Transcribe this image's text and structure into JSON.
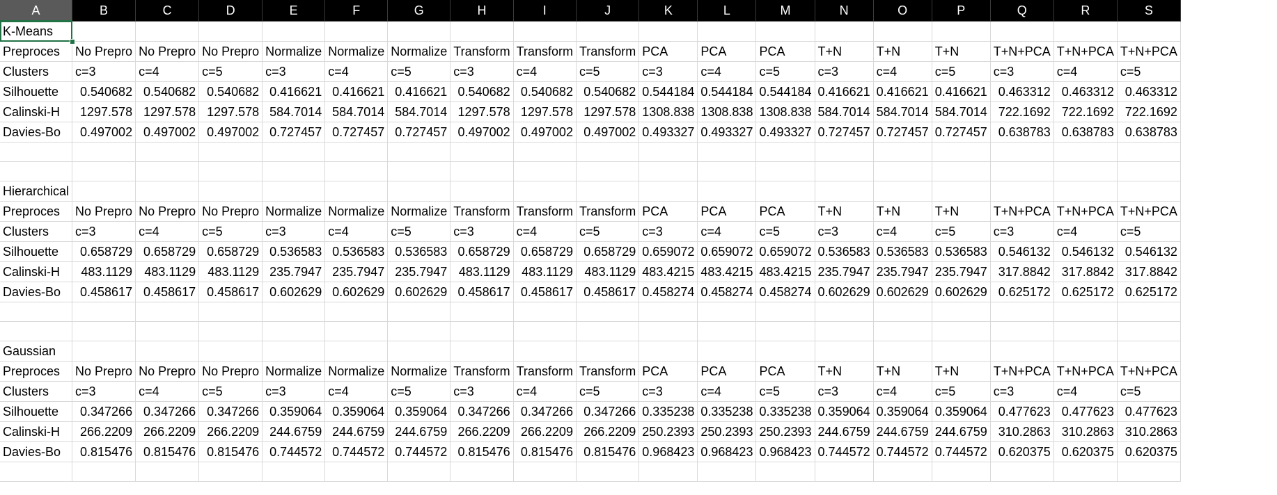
{
  "columns": [
    "A",
    "B",
    "C",
    "D",
    "E",
    "F",
    "G",
    "H",
    "I",
    "J",
    "K",
    "L",
    "M",
    "N",
    "O",
    "P",
    "Q",
    "R",
    "S"
  ],
  "active_column": "A",
  "selected_cell": "A1",
  "sections": [
    {
      "title": "K-Means",
      "preproc_label": "Preproces",
      "preproc": [
        "No Prepro",
        "No Prepro",
        "No Prepro",
        "Normalize",
        "Normalize",
        "Normalize",
        "Transform",
        "Transform",
        "Transform",
        "PCA",
        "PCA",
        "PCA",
        "T+N",
        "T+N",
        "T+N",
        "T+N+PCA",
        "T+N+PCA",
        "T+N+PCA"
      ],
      "clusters_label": "Clusters",
      "clusters": [
        "c=3",
        "c=4",
        "c=5",
        "c=3",
        "c=4",
        "c=5",
        "c=3",
        "c=4",
        "c=5",
        "c=3",
        "c=4",
        "c=5",
        "c=3",
        "c=4",
        "c=5",
        "c=3",
        "c=4",
        "c=5"
      ],
      "metrics": [
        {
          "label": "Silhouette",
          "values": [
            "0.540682",
            "0.540682",
            "0.540682",
            "0.416621",
            "0.416621",
            "0.416621",
            "0.540682",
            "0.540682",
            "0.540682",
            "0.544184",
            "0.544184",
            "0.544184",
            "0.416621",
            "0.416621",
            "0.416621",
            "0.463312",
            "0.463312",
            "0.463312"
          ]
        },
        {
          "label": "Calinski-H",
          "values": [
            "1297.578",
            "1297.578",
            "1297.578",
            "584.7014",
            "584.7014",
            "584.7014",
            "1297.578",
            "1297.578",
            "1297.578",
            "1308.838",
            "1308.838",
            "1308.838",
            "584.7014",
            "584.7014",
            "584.7014",
            "722.1692",
            "722.1692",
            "722.1692"
          ]
        },
        {
          "label": "Davies-Bo",
          "values": [
            "0.497002",
            "0.497002",
            "0.497002",
            "0.727457",
            "0.727457",
            "0.727457",
            "0.497002",
            "0.497002",
            "0.497002",
            "0.493327",
            "0.493327",
            "0.493327",
            "0.727457",
            "0.727457",
            "0.727457",
            "0.638783",
            "0.638783",
            "0.638783"
          ]
        }
      ]
    },
    {
      "title": "Hierarchical",
      "preproc_label": "Preproces",
      "preproc": [
        "No Prepro",
        "No Prepro",
        "No Prepro",
        "Normalize",
        "Normalize",
        "Normalize",
        "Transform",
        "Transform",
        "Transform",
        "PCA",
        "PCA",
        "PCA",
        "T+N",
        "T+N",
        "T+N",
        "T+N+PCA",
        "T+N+PCA",
        "T+N+PCA"
      ],
      "clusters_label": "Clusters",
      "clusters": [
        "c=3",
        "c=4",
        "c=5",
        "c=3",
        "c=4",
        "c=5",
        "c=3",
        "c=4",
        "c=5",
        "c=3",
        "c=4",
        "c=5",
        "c=3",
        "c=4",
        "c=5",
        "c=3",
        "c=4",
        "c=5"
      ],
      "metrics": [
        {
          "label": "Silhouette",
          "values": [
            "0.658729",
            "0.658729",
            "0.658729",
            "0.536583",
            "0.536583",
            "0.536583",
            "0.658729",
            "0.658729",
            "0.658729",
            "0.659072",
            "0.659072",
            "0.659072",
            "0.536583",
            "0.536583",
            "0.536583",
            "0.546132",
            "0.546132",
            "0.546132"
          ]
        },
        {
          "label": "Calinski-H",
          "values": [
            "483.1129",
            "483.1129",
            "483.1129",
            "235.7947",
            "235.7947",
            "235.7947",
            "483.1129",
            "483.1129",
            "483.1129",
            "483.4215",
            "483.4215",
            "483.4215",
            "235.7947",
            "235.7947",
            "235.7947",
            "317.8842",
            "317.8842",
            "317.8842"
          ]
        },
        {
          "label": "Davies-Bo",
          "values": [
            "0.458617",
            "0.458617",
            "0.458617",
            "0.602629",
            "0.602629",
            "0.602629",
            "0.458617",
            "0.458617",
            "0.458617",
            "0.458274",
            "0.458274",
            "0.458274",
            "0.602629",
            "0.602629",
            "0.602629",
            "0.625172",
            "0.625172",
            "0.625172"
          ]
        }
      ]
    },
    {
      "title": "Gaussian",
      "preproc_label": "Preproces",
      "preproc": [
        "No Prepro",
        "No Prepro",
        "No Prepro",
        "Normalize",
        "Normalize",
        "Normalize",
        "Transform",
        "Transform",
        "Transform",
        "PCA",
        "PCA",
        "PCA",
        "T+N",
        "T+N",
        "T+N",
        "T+N+PCA",
        "T+N+PCA",
        "T+N+PCA"
      ],
      "clusters_label": "Clusters",
      "clusters": [
        "c=3",
        "c=4",
        "c=5",
        "c=3",
        "c=4",
        "c=5",
        "c=3",
        "c=4",
        "c=5",
        "c=3",
        "c=4",
        "c=5",
        "c=3",
        "c=4",
        "c=5",
        "c=3",
        "c=4",
        "c=5"
      ],
      "metrics": [
        {
          "label": "Silhouette",
          "values": [
            "0.347266",
            "0.347266",
            "0.347266",
            "0.359064",
            "0.359064",
            "0.359064",
            "0.347266",
            "0.347266",
            "0.347266",
            "0.335238",
            "0.335238",
            "0.335238",
            "0.359064",
            "0.359064",
            "0.359064",
            "0.477623",
            "0.477623",
            "0.477623"
          ]
        },
        {
          "label": "Calinski-H",
          "values": [
            "266.2209",
            "266.2209",
            "266.2209",
            "244.6759",
            "244.6759",
            "244.6759",
            "266.2209",
            "266.2209",
            "266.2209",
            "250.2393",
            "250.2393",
            "250.2393",
            "244.6759",
            "244.6759",
            "244.6759",
            "310.2863",
            "310.2863",
            "310.2863"
          ]
        },
        {
          "label": "Davies-Bo",
          "values": [
            "0.815476",
            "0.815476",
            "0.815476",
            "0.744572",
            "0.744572",
            "0.744572",
            "0.815476",
            "0.815476",
            "0.815476",
            "0.968423",
            "0.968423",
            "0.968423",
            "0.744572",
            "0.744572",
            "0.744572",
            "0.620375",
            "0.620375",
            "0.620375"
          ]
        }
      ]
    }
  ],
  "colors": {
    "header_bg": "#000000",
    "header_text": "#ffffff",
    "active_header_bg": "#5a5a5a",
    "selection": "#217346",
    "gridline": "#d9d9d9"
  }
}
